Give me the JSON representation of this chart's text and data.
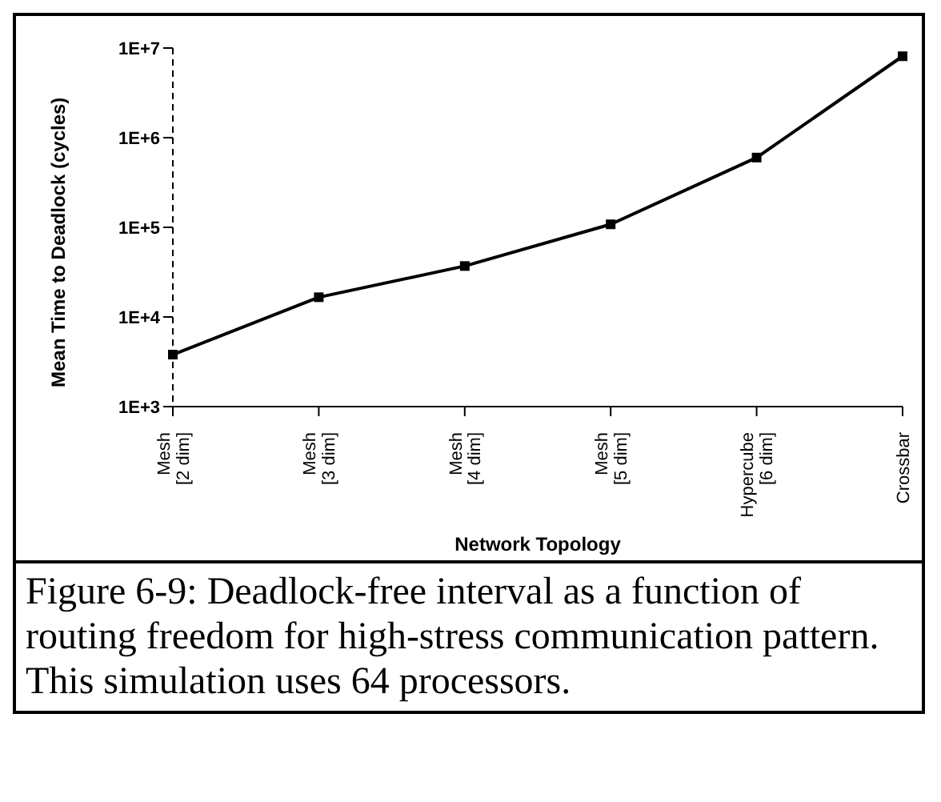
{
  "chart_data": {
    "type": "line",
    "xlabel": "Network Topology",
    "ylabel": "Mean Time to Deadlock (cycles)",
    "categories": [
      "Mesh [2 dim]",
      "Mesh [3 dim]",
      "Mesh [4 dim]",
      "Mesh [5 dim]",
      "Hypercube [6 dim]",
      "Crossbar"
    ],
    "series": [
      {
        "color": "#000000",
        "values": [
          3800,
          16600,
          37000,
          108000,
          600000,
          8100000
        ]
      }
    ],
    "log": "y",
    "ylim": [
      1000,
      10000000
    ],
    "yticks": [
      {
        "value": 1000,
        "label": "1E+3"
      },
      {
        "value": 10000,
        "label": "1E+4"
      },
      {
        "value": 100000,
        "label": "1E+5"
      },
      {
        "value": 1000000,
        "label": "1E+6"
      },
      {
        "value": 10000000,
        "label": "1E+7"
      }
    ],
    "marker": "square",
    "line_style": "solid",
    "grid": false,
    "legend": false,
    "annotations": [
      "Figure 6-9: Deadlock-free interval as a function of routing freedom for high-stress communication pattern. This simulation uses 64 processors."
    ]
  }
}
